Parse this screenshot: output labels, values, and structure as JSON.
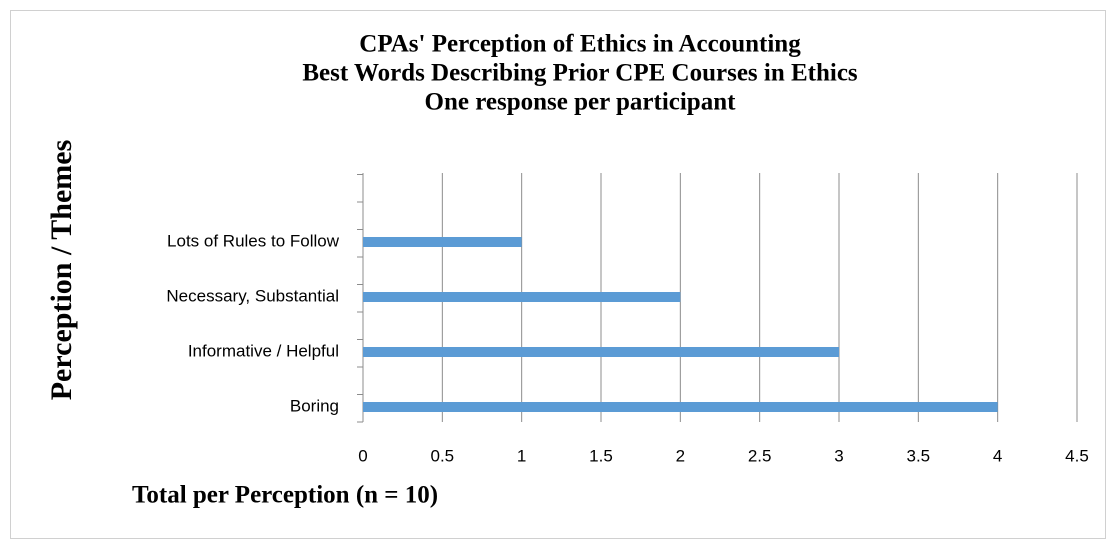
{
  "chart_data": {
    "type": "bar",
    "orientation": "horizontal",
    "title": [
      "CPAs' Perception of Ethics in Accounting",
      "Best Words Describing Prior CPE Courses in Ethics",
      "One response per participant"
    ],
    "y_label": "Perception / Themes",
    "x_label": "Total per Perception (n = 10)",
    "categories": [
      "Boring",
      "Informative / Helpful",
      "Necessary, Substantial",
      "Lots of Rules to Follow"
    ],
    "values": [
      4,
      3,
      2,
      1
    ],
    "color": "#5b9bd5",
    "xlim": [
      0,
      4.5
    ],
    "xticks": [
      0,
      0.5,
      1,
      1.5,
      2,
      2.5,
      3,
      3.5,
      4,
      4.5
    ],
    "grid": true
  }
}
